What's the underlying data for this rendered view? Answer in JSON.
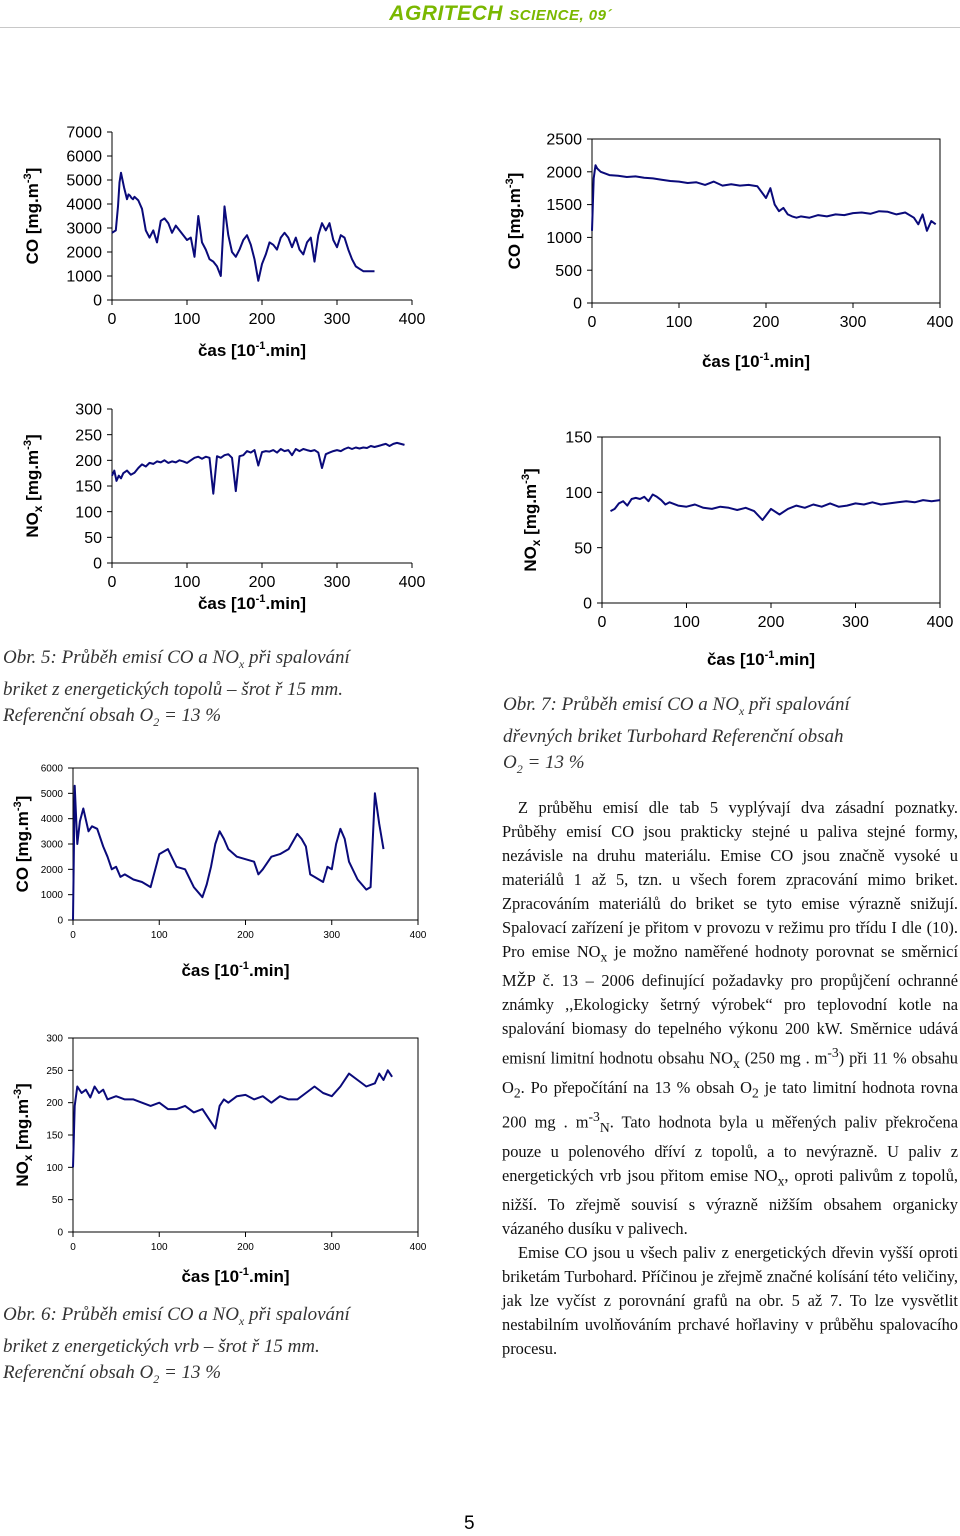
{
  "header": {
    "journal_main": "AGRITECH",
    "journal_sub": "SCIENCE, 09´"
  },
  "chart_data": [
    {
      "type": "line",
      "ylabel": "CO [mg.m-3]",
      "xlabel": "čas [10-1.min]",
      "xlim": [
        0,
        400
      ],
      "ylim": [
        0,
        7000
      ],
      "xticks": [
        "0",
        "100",
        "200",
        "300",
        "400"
      ],
      "yticks": [
        "0",
        "1000",
        "2000",
        "3000",
        "4000",
        "5000",
        "6000",
        "7000"
      ],
      "x": [
        0,
        5,
        8,
        10,
        12,
        14,
        16,
        18,
        20,
        22,
        24,
        26,
        28,
        30,
        35,
        40,
        45,
        50,
        55,
        60,
        65,
        70,
        75,
        80,
        85,
        90,
        95,
        100,
        105,
        110,
        115,
        120,
        125,
        130,
        135,
        140,
        145,
        150,
        155,
        160,
        165,
        170,
        175,
        180,
        185,
        190,
        195,
        200,
        205,
        210,
        215,
        220,
        225,
        230,
        235,
        240,
        245,
        250,
        255,
        260,
        265,
        270,
        275,
        280,
        285,
        290,
        295,
        300,
        305,
        310,
        315,
        320,
        325,
        330,
        335,
        340,
        345,
        350
      ],
      "y": [
        2800,
        2900,
        3900,
        4900,
        5300,
        5000,
        4700,
        4450,
        4200,
        4400,
        4350,
        4250,
        4200,
        4300,
        4150,
        3800,
        2900,
        2600,
        2900,
        2400,
        3300,
        3400,
        3200,
        2800,
        3100,
        2900,
        2700,
        2500,
        2600,
        1800,
        3500,
        2400,
        2100,
        1700,
        1600,
        1400,
        1000,
        3900,
        2700,
        2000,
        1800,
        2100,
        2500,
        2700,
        2300,
        1700,
        800,
        1500,
        1900,
        2400,
        2300,
        2100,
        2600,
        2800,
        2600,
        2200,
        2600,
        2100,
        1900,
        2400,
        2600,
        1600,
        2700,
        3200,
        2900,
        3200,
        2500,
        2200,
        2700,
        2600,
        2100,
        1700,
        1400,
        1300,
        1200,
        1200,
        1200,
        1200
      ]
    },
    {
      "type": "line",
      "ylabel": "NOx [mg.m-3]",
      "xlabel": "čas [10-1.min]",
      "xlim": [
        0,
        400
      ],
      "ylim": [
        0,
        300
      ],
      "xticks": [
        "0",
        "100",
        "200",
        "300",
        "400"
      ],
      "yticks": [
        "0",
        "50",
        "100",
        "150",
        "200",
        "250",
        "300"
      ],
      "x": [
        0,
        3,
        6,
        9,
        12,
        15,
        20,
        25,
        30,
        35,
        40,
        45,
        50,
        55,
        60,
        65,
        70,
        75,
        80,
        85,
        90,
        95,
        100,
        105,
        110,
        115,
        120,
        125,
        130,
        135,
        140,
        145,
        150,
        155,
        160,
        165,
        170,
        175,
        180,
        185,
        190,
        195,
        200,
        205,
        210,
        215,
        220,
        225,
        230,
        235,
        240,
        245,
        250,
        255,
        260,
        265,
        270,
        275,
        280,
        285,
        290,
        295,
        300,
        305,
        310,
        315,
        320,
        325,
        330,
        335,
        340,
        345,
        350,
        355,
        360,
        365,
        370,
        375,
        380,
        385,
        390
      ],
      "y": [
        170,
        180,
        160,
        170,
        165,
        175,
        180,
        172,
        176,
        185,
        192,
        188,
        195,
        193,
        198,
        196,
        200,
        195,
        198,
        196,
        200,
        198,
        195,
        200,
        205,
        207,
        203,
        207,
        205,
        135,
        208,
        205,
        210,
        212,
        205,
        140,
        208,
        210,
        218,
        215,
        220,
        190,
        216,
        218,
        217,
        220,
        215,
        222,
        218,
        220,
        210,
        222,
        218,
        222,
        220,
        218,
        220,
        215,
        185,
        212,
        215,
        218,
        220,
        218,
        222,
        225,
        222,
        225,
        223,
        225,
        224,
        228,
        226,
        228,
        230,
        232,
        228,
        232,
        234,
        232,
        230
      ]
    },
    {
      "type": "line",
      "ylabel": "CO [mg.m-3]",
      "xlabel": "čas [10-1.min]",
      "xlim": [
        0,
        400
      ],
      "ylim": [
        0,
        2500
      ],
      "xticks": [
        "0",
        "100",
        "200",
        "300",
        "400"
      ],
      "yticks": [
        "0",
        "500",
        "1000",
        "1500",
        "2000",
        "2500"
      ],
      "x": [
        0,
        2,
        4,
        6,
        10,
        20,
        30,
        40,
        50,
        60,
        70,
        80,
        90,
        100,
        110,
        120,
        130,
        140,
        150,
        160,
        170,
        180,
        190,
        200,
        205,
        210,
        215,
        220,
        225,
        230,
        235,
        240,
        250,
        260,
        270,
        280,
        290,
        300,
        310,
        320,
        330,
        340,
        350,
        360,
        370,
        375,
        380,
        385,
        390,
        395
      ],
      "y": [
        1100,
        1900,
        2100,
        2050,
        2000,
        1950,
        1940,
        1920,
        1930,
        1910,
        1900,
        1880,
        1860,
        1850,
        1830,
        1840,
        1800,
        1850,
        1790,
        1810,
        1790,
        1800,
        1780,
        1600,
        1750,
        1500,
        1400,
        1450,
        1350,
        1320,
        1300,
        1320,
        1300,
        1340,
        1320,
        1350,
        1340,
        1370,
        1380,
        1360,
        1400,
        1390,
        1350,
        1380,
        1300,
        1200,
        1350,
        1100,
        1250,
        1200
      ]
    },
    {
      "type": "line",
      "ylabel": "NOx [mg.m-3]",
      "xlabel": "čas [10-1.min]",
      "xlim": [
        0,
        400
      ],
      "ylim": [
        0,
        150
      ],
      "xticks": [
        "0",
        "100",
        "200",
        "300",
        "400"
      ],
      "yticks": [
        "0",
        "50",
        "100",
        "150"
      ],
      "x": [
        10,
        15,
        20,
        25,
        30,
        35,
        40,
        45,
        50,
        55,
        60,
        65,
        70,
        75,
        80,
        90,
        100,
        110,
        120,
        130,
        140,
        150,
        160,
        170,
        180,
        190,
        200,
        210,
        220,
        230,
        240,
        250,
        260,
        270,
        280,
        290,
        300,
        310,
        320,
        330,
        340,
        350,
        360,
        370,
        380,
        390,
        400
      ],
      "y": [
        83,
        85,
        90,
        92,
        88,
        94,
        95,
        94,
        96,
        92,
        98,
        96,
        93,
        89,
        91,
        88,
        87,
        89,
        86,
        85,
        87,
        86,
        84,
        86,
        83,
        75,
        85,
        80,
        85,
        88,
        86,
        89,
        87,
        90,
        87,
        88,
        90,
        89,
        91,
        89,
        90,
        91,
        92,
        91,
        93,
        92,
        93
      ]
    },
    {
      "type": "line",
      "ylabel": "CO [mg.m-3]",
      "xlabel": "čas [10-1.min]",
      "xlim": [
        0,
        400
      ],
      "ylim": [
        0,
        6000
      ],
      "xticks": [
        "0",
        "100",
        "200",
        "300",
        "400"
      ],
      "yticks": [
        "0",
        "1000",
        "2000",
        "3000",
        "4000",
        "5000",
        "6000"
      ],
      "x": [
        0,
        2,
        5,
        8,
        12,
        18,
        22,
        28,
        35,
        40,
        45,
        50,
        55,
        60,
        70,
        80,
        90,
        100,
        110,
        120,
        130,
        140,
        150,
        155,
        160,
        165,
        170,
        175,
        180,
        190,
        200,
        210,
        215,
        220,
        230,
        240,
        250,
        260,
        265,
        270,
        275,
        280,
        290,
        295,
        300,
        305,
        310,
        315,
        320,
        330,
        340,
        345,
        350,
        355,
        360
      ],
      "y": [
        0,
        5300,
        3000,
        3900,
        4400,
        3500,
        3700,
        3600,
        2900,
        2500,
        2000,
        2100,
        1700,
        1800,
        1600,
        1500,
        1300,
        2600,
        2800,
        2100,
        2000,
        1300,
        900,
        1400,
        2100,
        3000,
        3500,
        3200,
        2800,
        2500,
        2400,
        2300,
        1800,
        2000,
        2500,
        2600,
        2800,
        3400,
        3200,
        2900,
        1800,
        1700,
        1500,
        2100,
        2000,
        3000,
        3600,
        3200,
        2300,
        1600,
        1200,
        1300,
        5000,
        3800,
        2800
      ]
    },
    {
      "type": "line",
      "ylabel": "NOx [mg.m-3]",
      "xlabel": "čas [10-1.min]",
      "xlim": [
        0,
        400
      ],
      "ylim": [
        0,
        300
      ],
      "xticks": [
        "0",
        "100",
        "200",
        "300",
        "400"
      ],
      "yticks": [
        "0",
        "50",
        "100",
        "150",
        "200",
        "250",
        "300"
      ],
      "x": [
        0,
        2,
        5,
        10,
        15,
        20,
        25,
        30,
        35,
        40,
        50,
        60,
        70,
        80,
        90,
        100,
        110,
        120,
        130,
        140,
        150,
        160,
        165,
        170,
        175,
        180,
        190,
        200,
        210,
        220,
        230,
        240,
        250,
        260,
        270,
        280,
        290,
        300,
        310,
        320,
        330,
        340,
        350,
        355,
        360,
        365,
        370
      ],
      "y": [
        100,
        195,
        225,
        215,
        220,
        208,
        225,
        215,
        220,
        205,
        210,
        205,
        205,
        200,
        195,
        200,
        190,
        190,
        195,
        185,
        190,
        170,
        160,
        195,
        205,
        200,
        210,
        212,
        205,
        210,
        200,
        210,
        205,
        205,
        215,
        225,
        215,
        210,
        225,
        245,
        235,
        225,
        230,
        245,
        235,
        250,
        240
      ]
    }
  ],
  "captions": {
    "fig5": {
      "line1": "Obr. 5: Průběh emisí CO a NO",
      "line1_sub": "x",
      "line1_end": " při spalování",
      "line2": "briket z energetických topolů – šrot ř 15 mm.",
      "line3": "Referenční obsah O",
      "line3_sub": "2",
      "line3_end": " = 13 %"
    },
    "fig6": {
      "line1": "Obr. 6: Průběh emisí CO a NO",
      "line1_sub": "x",
      "line1_end": " při spalování",
      "line2": "briket z energetických vrb – šrot ř 15 mm.",
      "line3": "Referenční obsah O",
      "line3_sub": "2",
      "line3_end": " = 13 %"
    },
    "fig7": {
      "line1": "Obr. 7: Průběh emisí CO a NO",
      "line1_sub": "x",
      "line1_end": " při spalování",
      "line2": "dřevných briket Turbohard Referenční obsah",
      "line3": "O",
      "line3_sub": "2",
      "line3_end": " = 13 %"
    }
  },
  "body": {
    "p1": [
      {
        "t": "Z průběhu emisí dle tab 5 vyplývají dva zásadní poznatky. Průběhy emisí CO jsou prakticky stejné u paliva stejné formy, nezávisle na druhu materiálu. Emise CO jsou značně vysoké u materiálů 1 až 5, tzn. u všech forem zpracování mimo briket. Zpracováním materiálů do briket se tyto emise výrazně snižují. Spalovací zařízení je přitom v provozu v režimu pro třídu I dle (10). Pro emise NO"
      },
      {
        "sub": "x"
      },
      {
        "t": " je možno naměřené hodnoty porovnat se směrnicí MŽP č. 13 – 2006 definující požadavky pro propůjčení ochranné známky ,,Ekologicky šetrný výrobek“ pro teplovodní kotle na spalování biomasy do tepelného výkonu 200 kW. Směrnice udává emisní limitní hodnotu obsahu NO"
      },
      {
        "sub": "x"
      },
      {
        "t": " (250 mg . m"
      },
      {
        "sup": "-3"
      },
      {
        "t": ") při 11 % obsahu O"
      },
      {
        "sub": "2"
      },
      {
        "t": ". Po přepočítání na 13 % obsah O"
      },
      {
        "sub": "2"
      },
      {
        "t": " je tato limitní hodnota rovna 200 mg . m"
      },
      {
        "sup": "-3"
      },
      {
        "sub": "N"
      },
      {
        "t": ". Tato hodnota byla u měřených paliv překročena pouze u polenového dříví z topolů, a to nevýrazně. U paliv z energetických vrb jsou přitom emise NO"
      },
      {
        "sub": "x"
      },
      {
        "t": ", oproti palivům z topolů, nižší. To zřejmě souvisí s výrazně nižším obsahem organicky vázaného dusíku v palivech."
      }
    ],
    "p2": [
      {
        "t": "Emise CO jsou u všech paliv z energetických dřevin vyšší oproti briketám Turbohard. Příčinou je zřejmě značné kolísání této veličiny, jak lze vyčíst z porovnání grafů na obr. 5 až 7. To lze vysvětlit nestabilním uvolňováním prchavé hořlaviny v průběhu spalovacího procesu."
      }
    ]
  },
  "page_number": "5"
}
